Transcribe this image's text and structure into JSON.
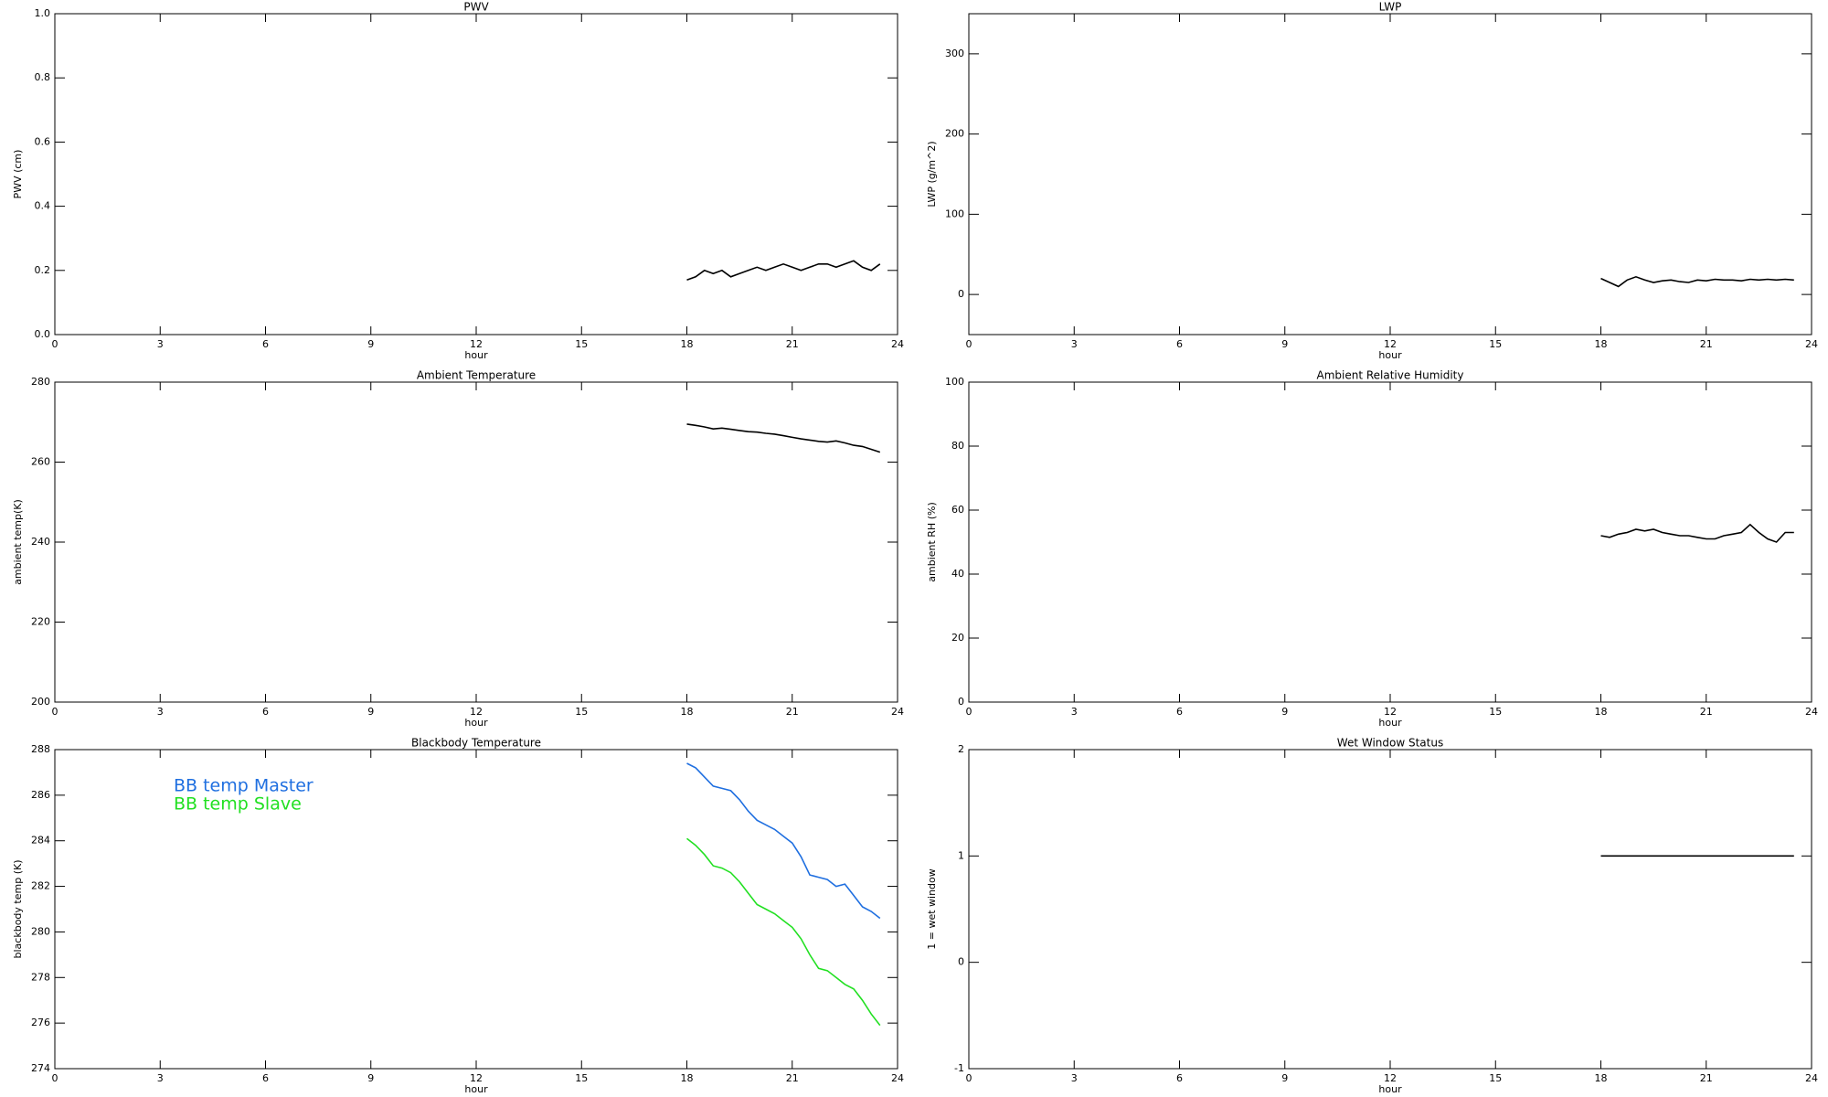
{
  "chart_data": [
    {
      "type": "line",
      "title": "PWV",
      "xlabel": "hour",
      "ylabel": "PWV (cm)",
      "x": [
        18,
        18.25,
        18.5,
        18.75,
        19,
        19.25,
        19.5,
        19.75,
        20,
        20.25,
        20.5,
        20.75,
        21,
        21.25,
        21.5,
        21.75,
        22,
        22.25,
        22.5,
        22.75,
        23,
        23.25,
        23.5
      ],
      "values": [
        0.17,
        0.18,
        0.2,
        0.19,
        0.2,
        0.18,
        0.19,
        0.2,
        0.21,
        0.2,
        0.21,
        0.22,
        0.21,
        0.2,
        0.21,
        0.22,
        0.22,
        0.21,
        0.22,
        0.23,
        0.21,
        0.2,
        0.22
      ],
      "color": "#000000",
      "xlim": [
        0,
        24
      ],
      "xticks": [
        0,
        3,
        6,
        9,
        12,
        15,
        18,
        21,
        24
      ],
      "ylim": [
        0,
        1
      ],
      "yticks": [
        {
          "value": 0,
          "label": "0.0"
        },
        0.2,
        0.4,
        0.6,
        0.8,
        {
          "value": 1,
          "label": "1.0"
        }
      ]
    },
    {
      "type": "line",
      "title": "LWP",
      "xlabel": "hour",
      "ylabel": "LWP (g/m^2)",
      "x": [
        18,
        18.25,
        18.5,
        18.75,
        19,
        19.25,
        19.5,
        19.75,
        20,
        20.25,
        20.5,
        20.75,
        21,
        21.25,
        21.5,
        21.75,
        22,
        22.25,
        22.5,
        22.75,
        23,
        23.25,
        23.5
      ],
      "values": [
        20,
        15,
        10,
        18,
        22,
        18,
        15,
        17,
        18,
        16,
        15,
        18,
        17,
        19,
        18,
        18,
        17,
        19,
        18,
        19,
        18,
        19,
        18
      ],
      "color": "#000000",
      "xlim": [
        0,
        24
      ],
      "xticks": [
        0,
        3,
        6,
        9,
        12,
        15,
        18,
        21,
        24
      ],
      "ylim": [
        -50,
        350
      ],
      "yticks": [
        0,
        100,
        200,
        300
      ]
    },
    {
      "type": "line",
      "title": "Ambient Temperature",
      "xlabel": "hour",
      "ylabel": "ambient temp(K)",
      "x": [
        18,
        18.25,
        18.5,
        18.75,
        19,
        19.25,
        19.5,
        19.75,
        20,
        20.25,
        20.5,
        20.75,
        21,
        21.25,
        21.5,
        21.75,
        22,
        22.25,
        22.5,
        22.75,
        23,
        23.25,
        23.5
      ],
      "values": [
        269.5,
        269.2,
        268.8,
        268.3,
        268.5,
        268.2,
        267.9,
        267.6,
        267.5,
        267.2,
        267.0,
        266.6,
        266.2,
        265.8,
        265.5,
        265.2,
        265.0,
        265.3,
        264.8,
        264.2,
        263.9,
        263.2,
        262.5
      ],
      "color": "#000000",
      "xlim": [
        0,
        24
      ],
      "xticks": [
        0,
        3,
        6,
        9,
        12,
        15,
        18,
        21,
        24
      ],
      "ylim": [
        200,
        280
      ],
      "yticks": [
        200,
        220,
        240,
        260,
        280
      ]
    },
    {
      "type": "line",
      "title": "Ambient Relative Humidity",
      "xlabel": "hour",
      "ylabel": "ambient RH (%)",
      "x": [
        18,
        18.25,
        18.5,
        18.75,
        19,
        19.25,
        19.5,
        19.75,
        20,
        20.25,
        20.5,
        20.75,
        21,
        21.25,
        21.5,
        21.75,
        22,
        22.25,
        22.5,
        22.75,
        23,
        23.25,
        23.5
      ],
      "values": [
        52,
        51.5,
        52.5,
        53,
        54,
        53.5,
        54,
        53,
        52.5,
        52,
        52,
        51.5,
        51,
        51,
        52,
        52.5,
        53,
        55.5,
        53,
        51,
        50,
        53,
        53
      ],
      "color": "#000000",
      "xlim": [
        0,
        24
      ],
      "xticks": [
        0,
        3,
        6,
        9,
        12,
        15,
        18,
        21,
        24
      ],
      "ylim": [
        0,
        100
      ],
      "yticks": [
        0,
        20,
        40,
        60,
        80,
        100
      ]
    },
    {
      "type": "line",
      "title": "Blackbody Temperature",
      "xlabel": "hour",
      "ylabel": "blackbody temp (K)",
      "x": [
        18,
        18.25,
        18.5,
        18.75,
        19,
        19.25,
        19.5,
        19.75,
        20,
        20.25,
        20.5,
        20.75,
        21,
        21.25,
        21.5,
        21.75,
        22,
        22.25,
        22.5,
        22.75,
        23,
        23.25,
        23.5
      ],
      "series": [
        {
          "name": "BB temp Master",
          "color": "#1f6fe0",
          "values": [
            287.4,
            287.2,
            286.8,
            286.4,
            286.3,
            286.2,
            285.8,
            285.3,
            284.9,
            284.7,
            284.5,
            284.2,
            283.9,
            283.3,
            282.5,
            282.4,
            282.3,
            282.0,
            282.1,
            281.6,
            281.1,
            280.9,
            280.6
          ]
        },
        {
          "name": "BB temp Slave",
          "color": "#22e022",
          "values": [
            284.1,
            283.8,
            283.4,
            282.9,
            282.8,
            282.6,
            282.2,
            281.7,
            281.2,
            281.0,
            280.8,
            280.5,
            280.2,
            279.7,
            279.0,
            278.4,
            278.3,
            278.0,
            277.7,
            277.5,
            277.0,
            276.4,
            275.9
          ]
        }
      ],
      "legend": "top-left",
      "xlim": [
        0,
        24
      ],
      "xticks": [
        0,
        3,
        6,
        9,
        12,
        15,
        18,
        21,
        24
      ],
      "ylim": [
        274,
        288
      ],
      "yticks": [
        274,
        276,
        278,
        280,
        282,
        284,
        286,
        288
      ]
    },
    {
      "type": "line",
      "title": "Wet Window Status",
      "xlabel": "hour",
      "ylabel": "1 = wet window",
      "x": [
        18,
        23.5
      ],
      "values": [
        1,
        1
      ],
      "color": "#000000",
      "xlim": [
        0,
        24
      ],
      "xticks": [
        0,
        3,
        6,
        9,
        12,
        15,
        18,
        21,
        24
      ],
      "ylim": [
        -1,
        2
      ],
      "yticks": [
        -1,
        0,
        1,
        2
      ]
    }
  ]
}
